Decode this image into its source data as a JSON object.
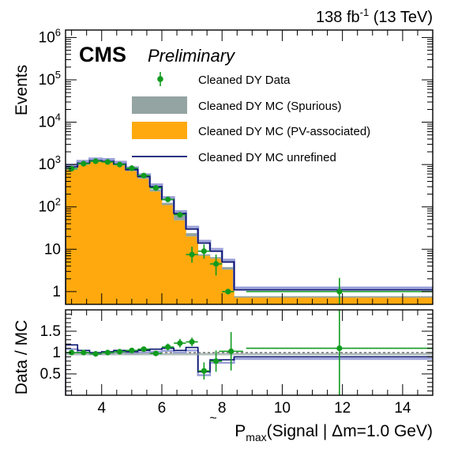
{
  "header": {
    "lumi": "138 fb",
    "lumi_exp": "-1",
    "lumi_suffix": " (13 TeV)",
    "cms": "CMS",
    "preliminary": "Preliminary"
  },
  "colors": {
    "pv_associated": "#ffa90e",
    "spurious": "#94a4a2",
    "unrefined": "#0a1470",
    "unrefined_shade": "#9aa0d8",
    "data": "#119b1f"
  },
  "legend": [
    {
      "label": "Cleaned DY Data",
      "kind": "data"
    },
    {
      "label": "Cleaned DY MC (Spurious)",
      "kind": "spurious"
    },
    {
      "label": "Cleaned DY MC (PV-associated)",
      "kind": "pv"
    },
    {
      "label": "Cleaned DY MC unrefined",
      "kind": "line"
    }
  ],
  "chart_data": [
    {
      "type": "bar",
      "panel": "main",
      "ylabel": "Events",
      "yscale": "log",
      "ylim": [
        0.5,
        1500000
      ],
      "xlim": [
        2.8,
        15
      ],
      "yticks": [
        {
          "value": 1,
          "base": "1",
          "exp": ""
        },
        {
          "value": 10,
          "base": "10",
          "exp": ""
        },
        {
          "value": 100,
          "base": "10",
          "exp": "2"
        },
        {
          "value": 1000,
          "base": "10",
          "exp": "3"
        },
        {
          "value": 10000,
          "base": "10",
          "exp": "4"
        },
        {
          "value": 100000,
          "base": "10",
          "exp": "5"
        },
        {
          "value": 1000000,
          "base": "10",
          "exp": "6"
        }
      ],
      "bin_edges": [
        2.8,
        3.2,
        3.6,
        4.0,
        4.4,
        4.8,
        5.2,
        5.6,
        6.0,
        6.4,
        6.8,
        7.2,
        7.6,
        8.0,
        8.4,
        8.8,
        15.0
      ],
      "pv_associated": [
        750,
        980,
        1150,
        1120,
        950,
        700,
        460,
        230,
        110,
        48,
        20,
        7,
        6,
        3.3,
        0.72,
        0.72
      ],
      "spurious_total": [
        790,
        1030,
        1200,
        1160,
        990,
        740,
        500,
        260,
        125,
        62,
        24,
        7.6,
        6.5,
        3.8,
        0.78,
        0.78
      ],
      "unrefined": [
        880,
        1080,
        1230,
        1190,
        1030,
        760,
        520,
        300,
        150,
        70,
        30,
        14,
        9,
        5,
        1.1,
        1.1
      ],
      "data": {
        "x": [
          3.0,
          3.4,
          3.8,
          4.2,
          4.6,
          5.0,
          5.4,
          5.8,
          6.2,
          6.6,
          7.0,
          7.4,
          7.8,
          8.2,
          11.9
        ],
        "y": [
          800,
          1050,
          1200,
          1150,
          1000,
          820,
          550,
          280,
          150,
          65,
          7.5,
          9,
          4.5,
          1.0,
          1.0
        ],
        "xerr": [
          0.2,
          0.2,
          0.2,
          0.2,
          0.2,
          0.2,
          0.2,
          0.2,
          0.2,
          0.2,
          0.2,
          0.2,
          0.2,
          0.2,
          3.1
        ],
        "yerr_lo": [
          0,
          0,
          0,
          0,
          0,
          0,
          0,
          0,
          0,
          0,
          2.7,
          3.0,
          2.1,
          0,
          0.6
        ],
        "yerr_hi": [
          0,
          0,
          0,
          0,
          0,
          0,
          0,
          0,
          0,
          0,
          4.0,
          4.0,
          3.0,
          0,
          1.1
        ]
      }
    },
    {
      "type": "line",
      "panel": "ratio",
      "ylabel": "Data / MC",
      "ylim": [
        0,
        2.0
      ],
      "xlim": [
        2.8,
        15
      ],
      "yticks": [
        {
          "value": 0.5,
          "label": "0.5"
        },
        {
          "value": 1.0,
          "label": "1"
        },
        {
          "value": 1.5,
          "label": "1.5"
        }
      ],
      "xticks": [
        {
          "value": 4,
          "label": "4"
        },
        {
          "value": 6,
          "label": "6"
        },
        {
          "value": 8,
          "label": "8"
        },
        {
          "value": 10,
          "label": "10"
        },
        {
          "value": 12,
          "label": "12"
        },
        {
          "value": 14,
          "label": "14"
        }
      ],
      "xlabel_main": "P",
      "xlabel_sub": "max",
      "xlabel_rest": "(Signal | Δm=1.0 GeV)",
      "unrefined_ratio": [
        1.18,
        1.05,
        1.0,
        1.02,
        1.05,
        1.02,
        1.05,
        1.08,
        1.1,
        1.05,
        1.12,
        0.55,
        0.83,
        0.83,
        0.9,
        0.9
      ],
      "unrefined_band_lo": [
        1.08,
        1.0,
        0.97,
        0.98,
        1.0,
        0.98,
        1.0,
        1.02,
        1.04,
        1.0,
        1.05,
        0.47,
        0.76,
        0.76,
        0.85,
        0.85
      ],
      "data": {
        "x": [
          3.0,
          3.4,
          3.8,
          4.2,
          4.6,
          5.0,
          5.4,
          5.8,
          6.2,
          6.6,
          7.0,
          7.4,
          7.8,
          8.3,
          11.9
        ],
        "y": [
          1.0,
          1.0,
          0.97,
          1.0,
          1.02,
          1.05,
          1.08,
          0.98,
          1.13,
          1.22,
          1.25,
          0.57,
          0.8,
          1.03,
          1.1
        ],
        "xerr": [
          0.2,
          0.2,
          0.2,
          0.2,
          0.2,
          0.2,
          0.2,
          0.2,
          0.2,
          0.2,
          0.2,
          0.2,
          0.2,
          0.4,
          3.1
        ],
        "yerr": [
          0.03,
          0.03,
          0.03,
          0.03,
          0.03,
          0.04,
          0.05,
          0.06,
          0.08,
          0.1,
          0.1,
          0.2,
          0.25,
          0.45,
          1.1
        ]
      }
    }
  ]
}
